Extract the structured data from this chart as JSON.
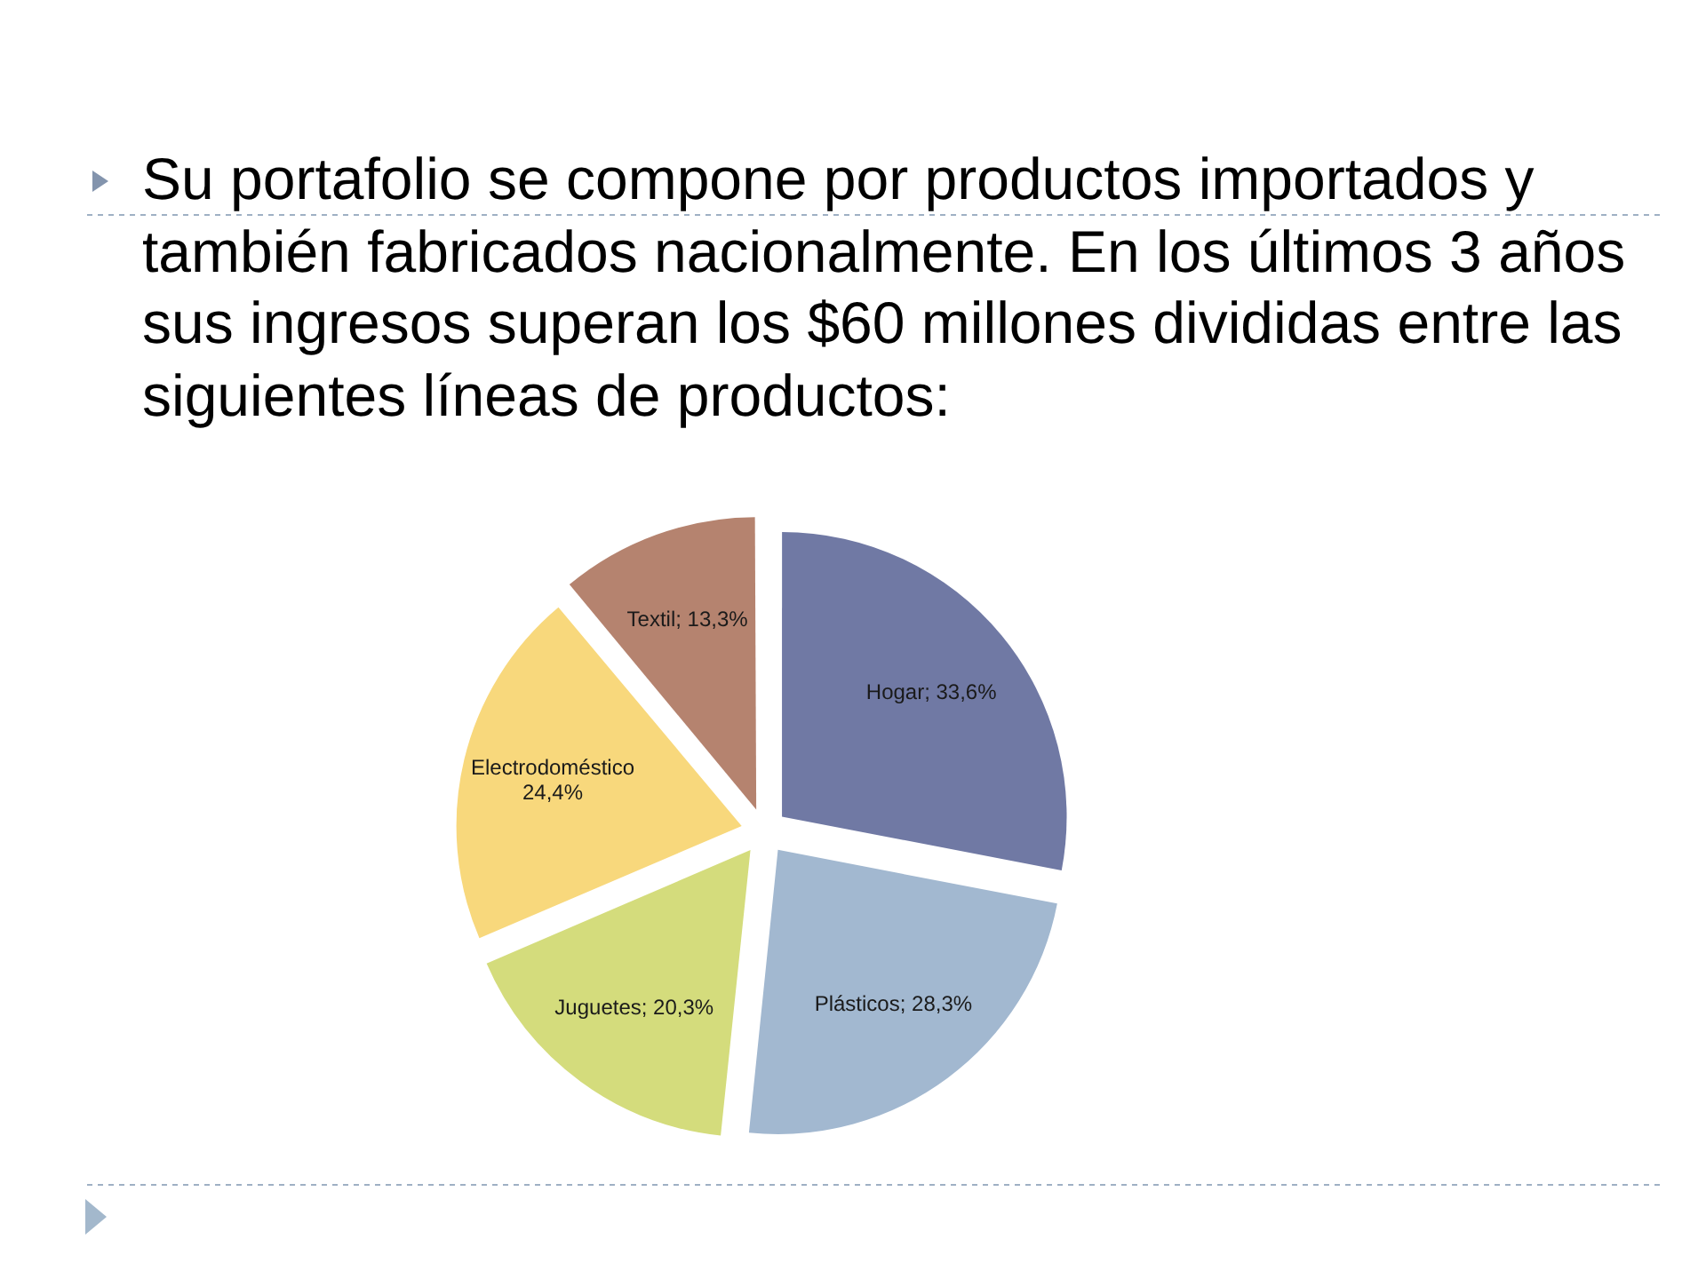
{
  "chart_data": {
    "type": "pie",
    "title": "Su portafolio se compone por productos importados y también fabricados nacionalmente. En los últimos 3 años sus ingresos superan los $60 millones divididas entre las siguientes líneas de productos:",
    "categories": [
      "Hogar",
      "Plásticos",
      "Juguetes",
      "Electrodoméstico",
      "Textil"
    ],
    "values": [
      33.6,
      28.3,
      20.3,
      24.4,
      13.3
    ],
    "colors": [
      "#7079a4",
      "#a2b8d0",
      "#d4dc7c",
      "#f8d87c",
      "#b5836f"
    ],
    "value_labels": [
      "33,6%",
      "28,3%",
      "20,3%",
      "24,4%",
      "13,3%"
    ],
    "legend": false
  }
}
